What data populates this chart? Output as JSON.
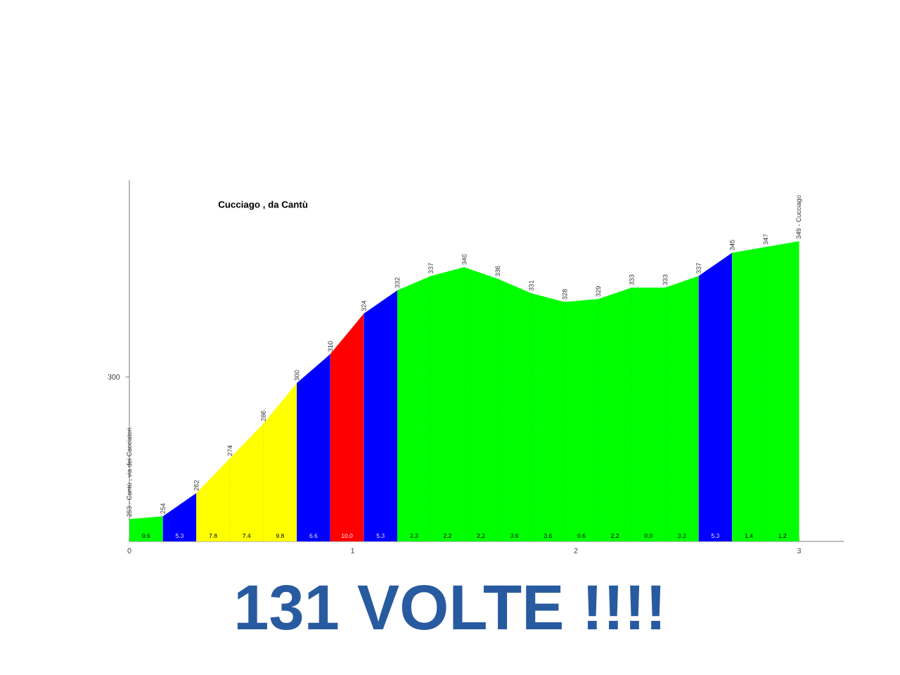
{
  "chart_data": {
    "type": "area",
    "title": "Cucciago , da Cantù",
    "series": [
      {
        "color": "#00ff00",
        "x": [
          0,
          0.15
        ],
        "values": [
          253,
          254
        ],
        "value_labels": [
          "253 - Cantù , via dei Cacciatori",
          null
        ]
      },
      {
        "color": "#0000ff",
        "x": [
          0.15,
          0.3
        ],
        "values": [
          254,
          262
        ],
        "value_labels": [
          "254",
          null
        ]
      },
      {
        "color": "#ffff00",
        "x": [
          0.3,
          0.45,
          0.6,
          0.75
        ],
        "values": [
          262,
          274,
          286,
          300
        ],
        "value_labels": [
          "262",
          "274",
          "286",
          null
        ]
      },
      {
        "color": "#0000ff",
        "x": [
          0.75,
          0.9
        ],
        "values": [
          300,
          310
        ],
        "value_labels": [
          "300",
          null
        ]
      },
      {
        "color": "#ff0000",
        "x": [
          0.9,
          1.05
        ],
        "values": [
          310,
          324
        ],
        "value_labels": [
          "310",
          null
        ]
      },
      {
        "color": "#0000ff",
        "x": [
          1.05,
          1.2
        ],
        "values": [
          324,
          332
        ],
        "value_labels": [
          "324",
          null
        ]
      },
      {
        "color": "#00ff00",
        "x": [
          1.2,
          1.35,
          1.5,
          1.65,
          1.8,
          1.95,
          2.1,
          2.25,
          2.4,
          2.55
        ],
        "values": [
          332,
          337,
          340,
          336,
          331,
          328,
          329,
          333,
          333,
          337
        ],
        "value_labels": [
          "332",
          "337",
          "340",
          "336",
          "331",
          "328",
          "329",
          "333",
          "333",
          null
        ]
      },
      {
        "color": "#0000ff",
        "x": [
          2.55,
          2.7
        ],
        "values": [
          337,
          345
        ],
        "value_labels": [
          "337",
          null
        ]
      },
      {
        "color": "#00ff00",
        "x": [
          2.7,
          2.85,
          3.0
        ],
        "values": [
          345,
          347,
          349
        ],
        "value_labels": [
          "345",
          "347",
          "349 - Cucciago"
        ]
      }
    ],
    "xlim": [
      0,
      3.2
    ],
    "xticks": [
      0,
      1,
      2,
      3
    ],
    "annotations": [
      "131 VOLTE !!!!",
      "300",
      "0.6",
      "5.3",
      "7.8",
      "7.4",
      "9.8",
      "6.6",
      "10.0",
      "5.3",
      "3.3",
      "2.2",
      "2.2",
      "3.6",
      "3.6",
      "0.6",
      "2.2",
      "0.0",
      "3.3",
      "5.3",
      "1.4",
      "1.2"
    ]
  }
}
